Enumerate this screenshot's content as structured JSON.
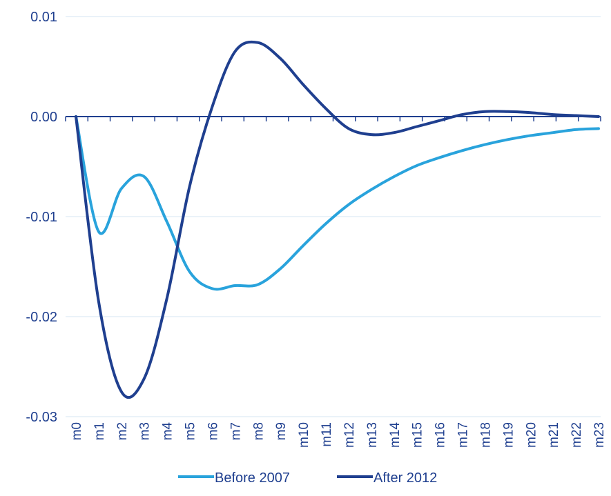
{
  "chart_data": {
    "type": "line",
    "title": "",
    "xlabel": "",
    "ylabel": "",
    "categories": [
      "m0",
      "m1",
      "m2",
      "m3",
      "m4",
      "m5",
      "m6",
      "m7",
      "m8",
      "m9",
      "m10",
      "m11",
      "m12",
      "m13",
      "m14",
      "m15",
      "m16",
      "m17",
      "m18",
      "m19",
      "m20",
      "m21",
      "m22",
      "m23"
    ],
    "y_ticks": [
      0.01,
      0.0,
      -0.01,
      -0.02,
      -0.03
    ],
    "y_tick_labels": [
      "0.01",
      "0.00",
      "-0.01",
      "-0.02",
      "-0.03"
    ],
    "ylim": [
      -0.03,
      0.01
    ],
    "grid": true,
    "legend_position": "bottom",
    "series": [
      {
        "name": "Before 2007",
        "color": "#29a3dc",
        "values": [
          0.0,
          -0.0115,
          -0.0072,
          -0.006,
          -0.0105,
          -0.0155,
          -0.0172,
          -0.0169,
          -0.0168,
          -0.0152,
          -0.0129,
          -0.0107,
          -0.0088,
          -0.0073,
          -0.006,
          -0.0049,
          -0.0041,
          -0.0034,
          -0.0028,
          -0.0023,
          -0.0019,
          -0.0016,
          -0.0013,
          -0.0012
        ]
      },
      {
        "name": "After 2012",
        "color": "#1f3f8f",
        "values": [
          0.0,
          -0.0185,
          -0.0275,
          -0.0262,
          -0.0182,
          -0.007,
          0.001,
          0.0065,
          0.0074,
          0.0058,
          0.0032,
          0.0008,
          -0.0012,
          -0.0018,
          -0.0016,
          -0.001,
          -0.0004,
          0.0002,
          0.0005,
          0.0005,
          0.0004,
          0.0002,
          0.0001,
          0.0
        ]
      }
    ]
  }
}
